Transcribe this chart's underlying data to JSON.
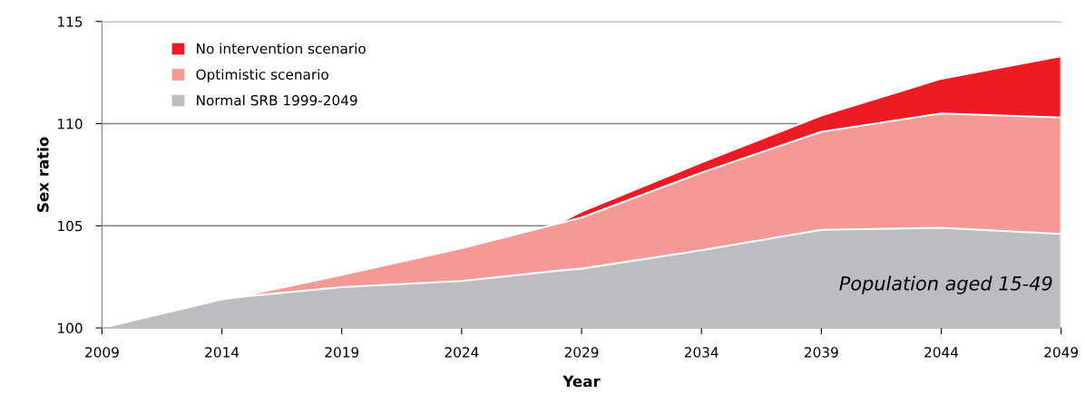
{
  "chart_data": {
    "type": "area",
    "xlabel": "Year",
    "ylabel": "Sex ratio",
    "x": [
      2009,
      2014,
      2015,
      2019,
      2024,
      2028,
      2029,
      2034,
      2039,
      2044,
      2049
    ],
    "series": [
      {
        "name": "No intervention scenario",
        "color": "#ed1c24",
        "values": [
          null,
          null,
          null,
          null,
          null,
          105.1,
          105.7,
          108.1,
          110.4,
          112.2,
          113.3
        ]
      },
      {
        "name": "Optimistic scenario",
        "color": "#f59994",
        "values": [
          null,
          null,
          101.6,
          102.6,
          103.9,
          105.1,
          105.4,
          107.6,
          109.6,
          110.5,
          110.3
        ]
      },
      {
        "name": "Normal SRB 1999-2049",
        "color": "#bcbdc0",
        "values": [
          100,
          101.4,
          101.55,
          102.0,
          102.3,
          102.8,
          102.9,
          103.8,
          104.8,
          104.9,
          104.6
        ]
      }
    ],
    "xlim": [
      2009,
      2049
    ],
    "xticks": [
      2009,
      2014,
      2019,
      2024,
      2029,
      2034,
      2039,
      2044,
      2049
    ],
    "ylim": [
      100,
      115
    ],
    "yticks": [
      100,
      105,
      110,
      115
    ],
    "grid": "y",
    "legend": "top left",
    "annotations": [
      "Population aged 15-49"
    ]
  }
}
